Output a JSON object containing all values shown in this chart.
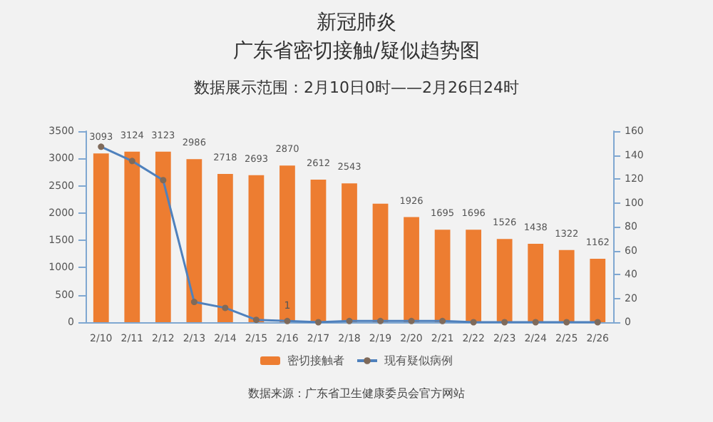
{
  "chart_data": {
    "type": "bar",
    "title": "新冠肺炎",
    "subtitle": "广东省密切接触/疑似趋势图",
    "annotations": [
      "数据展示范围：2月10日0时——2月26日24时",
      "数据来源：广东省卫生健康委员会官方网站"
    ],
    "categories": [
      "2/10",
      "2/11",
      "2/12",
      "2/13",
      "2/14",
      "2/15",
      "2/16",
      "2/17",
      "2/18",
      "2/19",
      "2/20",
      "2/21",
      "2/22",
      "2/23",
      "2/24",
      "2/25",
      "2/26"
    ],
    "series": [
      {
        "name": "密切接触者",
        "color": "#ed7d31",
        "values": [
          3093,
          3124,
          3123,
          2986,
          2718,
          2693,
          2870,
          2612,
          2543,
          2170,
          1926,
          1695,
          1696,
          1526,
          1438,
          1322,
          1162
        ],
        "value_labels": [
          "3093",
          "3124",
          "3123",
          "2986",
          "2718",
          "2693",
          "2870",
          "2612",
          "2543",
          null,
          "1926",
          "1695",
          "1696",
          "1526",
          "1438",
          "1322",
          "1162"
        ]
      },
      {
        "name": "现有疑似病例",
        "type": "line",
        "axis": "y2",
        "color": "#4f81bd",
        "marker": "circle",
        "values": [
          147,
          135,
          119,
          17,
          12,
          2,
          1,
          0,
          1,
          1,
          1,
          1,
          0,
          0,
          0,
          0,
          0
        ],
        "value_labels": [
          null,
          null,
          null,
          null,
          null,
          null,
          "1",
          null,
          null,
          null,
          null,
          null,
          null,
          null,
          null,
          null,
          null
        ]
      }
    ],
    "ylim": [
      0,
      3500
    ],
    "yticks": [
      0,
      500,
      1000,
      1500,
      2000,
      2500,
      3000,
      3500
    ],
    "y2lim": [
      0,
      160
    ],
    "y2ticks": [
      0,
      20,
      40,
      60,
      80,
      100,
      120,
      140,
      160
    ],
    "grid": false,
    "legend": "bottom"
  }
}
